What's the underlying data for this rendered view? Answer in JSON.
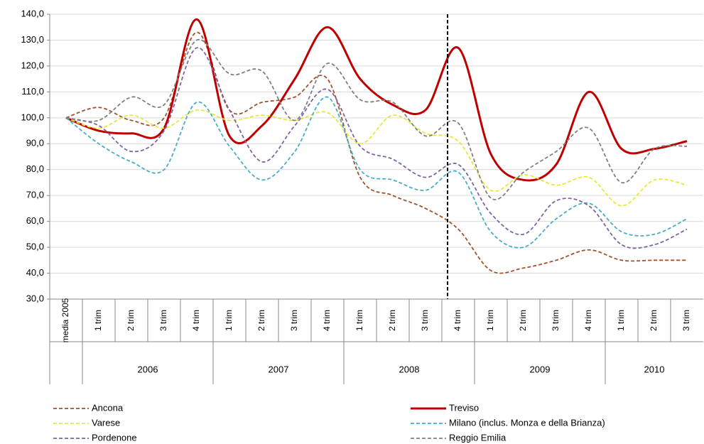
{
  "chart_data": {
    "type": "line",
    "categories": [
      "media 2005",
      "1 trim",
      "2 trim",
      "3 trim",
      "4 trim",
      "1 trim",
      "2 trim",
      "3 trim",
      "4 trim",
      "1 trim",
      "2 trim",
      "3 trim",
      "4 trim",
      "1 trim",
      "2 trim",
      "3 trim",
      "4 trim",
      "1 trim",
      "2 trim",
      "3 trim"
    ],
    "groups": [
      {
        "label": "2006",
        "from": 1,
        "to": 4
      },
      {
        "label": "2007",
        "from": 5,
        "to": 8
      },
      {
        "label": "2008",
        "from": 9,
        "to": 12
      },
      {
        "label": "2009",
        "from": 13,
        "to": 16
      },
      {
        "label": "2010",
        "from": 17,
        "to": 19
      }
    ],
    "series": [
      {
        "name": "Ancona",
        "color": "#a0522d",
        "style": "dashed",
        "values": [
          100,
          104,
          99,
          100,
          133,
          103,
          106,
          108,
          115,
          77,
          70,
          65,
          57,
          41,
          42,
          45,
          49,
          45,
          45,
          45
        ]
      },
      {
        "name": "Treviso",
        "color": "#c00000",
        "style": "solid",
        "values": [
          100,
          95,
          94,
          96,
          138,
          93,
          97,
          115,
          135,
          115,
          105,
          103,
          127,
          86,
          76,
          82,
          110,
          88,
          88,
          91
        ]
      },
      {
        "name": "Varese",
        "color": "#e8e83a",
        "style": "dashed",
        "values": [
          100,
          96,
          101,
          96,
          103,
          99,
          101,
          99,
          102,
          90,
          101,
          94,
          91,
          72,
          78,
          74,
          77,
          66,
          76,
          74
        ]
      },
      {
        "name": "Milano (inclus. Monza e della Brianza)",
        "color": "#4bacc6",
        "style": "dashed",
        "values": [
          100,
          90,
          83,
          80,
          106,
          89,
          76,
          87,
          108,
          80,
          76,
          72,
          79,
          56,
          50,
          61,
          67,
          56,
          55,
          61
        ]
      },
      {
        "name": "Pordenone",
        "color": "#8064a2",
        "style": "dashed",
        "values": [
          100,
          97,
          87,
          95,
          127,
          103,
          83,
          97,
          111,
          89,
          84,
          77,
          82,
          63,
          55,
          68,
          66,
          51,
          51,
          57
        ]
      },
      {
        "name": "Reggio Emilia",
        "color": "#808080",
        "style": "dashed",
        "values": [
          100,
          99,
          108,
          105,
          130,
          117,
          118,
          99,
          121,
          107,
          106,
          93,
          98,
          69,
          79,
          87,
          96,
          75,
          88,
          89
        ]
      }
    ],
    "ylim": [
      30,
      140
    ],
    "yticks": [
      {
        "value": 30,
        "label": "30,0"
      },
      {
        "value": 40,
        "label": "40,0"
      },
      {
        "value": 50,
        "label": "50,0"
      },
      {
        "value": 60,
        "label": "60,0"
      },
      {
        "value": 70,
        "label": "70,0"
      },
      {
        "value": 80,
        "label": "80,0"
      },
      {
        "value": 90,
        "label": "90,0"
      },
      {
        "value": 100,
        "label": "100,0"
      },
      {
        "value": 110,
        "label": "110,0"
      },
      {
        "value": 120,
        "label": "120,0"
      },
      {
        "value": 130,
        "label": "130,0"
      },
      {
        "value": 140,
        "label": "140,0"
      }
    ],
    "grid": true,
    "smooth": true,
    "legend": "bottom"
  }
}
